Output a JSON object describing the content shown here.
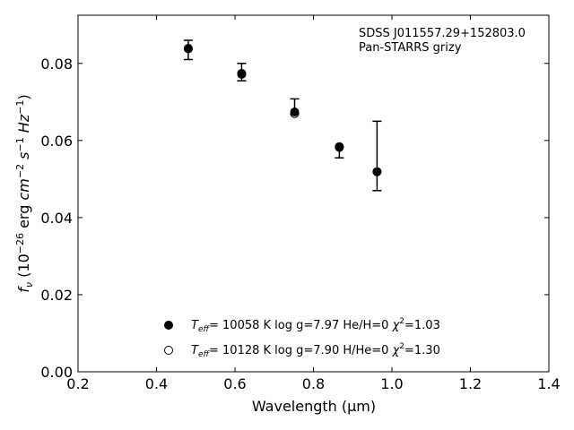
{
  "chart_data": {
    "type": "scatter",
    "xlabel": "Wavelength (μm)",
    "ylabel_parts": {
      "f": "f",
      "nu": "ν",
      "open": " (10",
      "exp1": "−26",
      "erg": " erg ",
      "cm": "cm",
      "exp2": "−2",
      "s": " s",
      "exp3": "−1",
      "hz": " Hz",
      "exp4": "−1",
      "close": ")"
    },
    "xlim": [
      0.2,
      1.4
    ],
    "ylim": [
      0.0,
      0.0925
    ],
    "x_ticks": [
      0.2,
      0.4,
      0.6,
      0.8,
      1.0,
      1.2,
      1.4
    ],
    "x_tick_labels": [
      "0.2",
      "0.4",
      "0.6",
      "0.8",
      "1.0",
      "1.2",
      "1.4"
    ],
    "y_ticks": [
      0.0,
      0.02,
      0.04,
      0.06,
      0.08
    ],
    "y_tick_labels": [
      "0.00",
      "0.02",
      "0.04",
      "0.06",
      "0.08"
    ],
    "annotation": {
      "line1": "SDSS J011557.29+152803.0",
      "line2": "Pan-STARRS grizy"
    },
    "series": [
      {
        "name": "Teff= 10058 K  log g=7.97  He/H=0  χ2=1.03",
        "marker": "filled",
        "x": [
          0.481,
          0.617,
          0.752,
          0.866,
          0.962
        ],
        "y": [
          0.0839,
          0.0774,
          0.0674,
          0.0582,
          0.0519
        ]
      },
      {
        "name": "Teff= 10128 K  log g=7.90  H/He=0  χ2=1.30",
        "marker": "open",
        "x": [
          0.481,
          0.617,
          0.752,
          0.866,
          0.962
        ],
        "y": [
          0.0838,
          0.0772,
          0.067,
          0.0584,
          0.0519
        ]
      }
    ],
    "observations": {
      "x": [
        0.481,
        0.617,
        0.752,
        0.866,
        0.962
      ],
      "y": [
        0.0835,
        0.0775,
        0.0685,
        0.057,
        0.056
      ],
      "yerr_low": [
        0.081,
        0.0755,
        0.0668,
        0.0555,
        0.047
      ],
      "yerr_high": [
        0.086,
        0.08,
        0.0708,
        0.0585,
        0.065
      ]
    },
    "legend": {
      "entry1": {
        "T": "T",
        "sub": "eff",
        "text1": "= 10058 K  log g=7.97  He/H=0  ",
        "chi": "χ",
        "sup": "2",
        "text2": "=1.03"
      },
      "entry2": {
        "T": "T",
        "sub": "eff",
        "text1": "= 10128 K  log g=7.90  H/He=0  ",
        "chi": "χ",
        "sup": "2",
        "text2": "=1.30"
      }
    }
  }
}
